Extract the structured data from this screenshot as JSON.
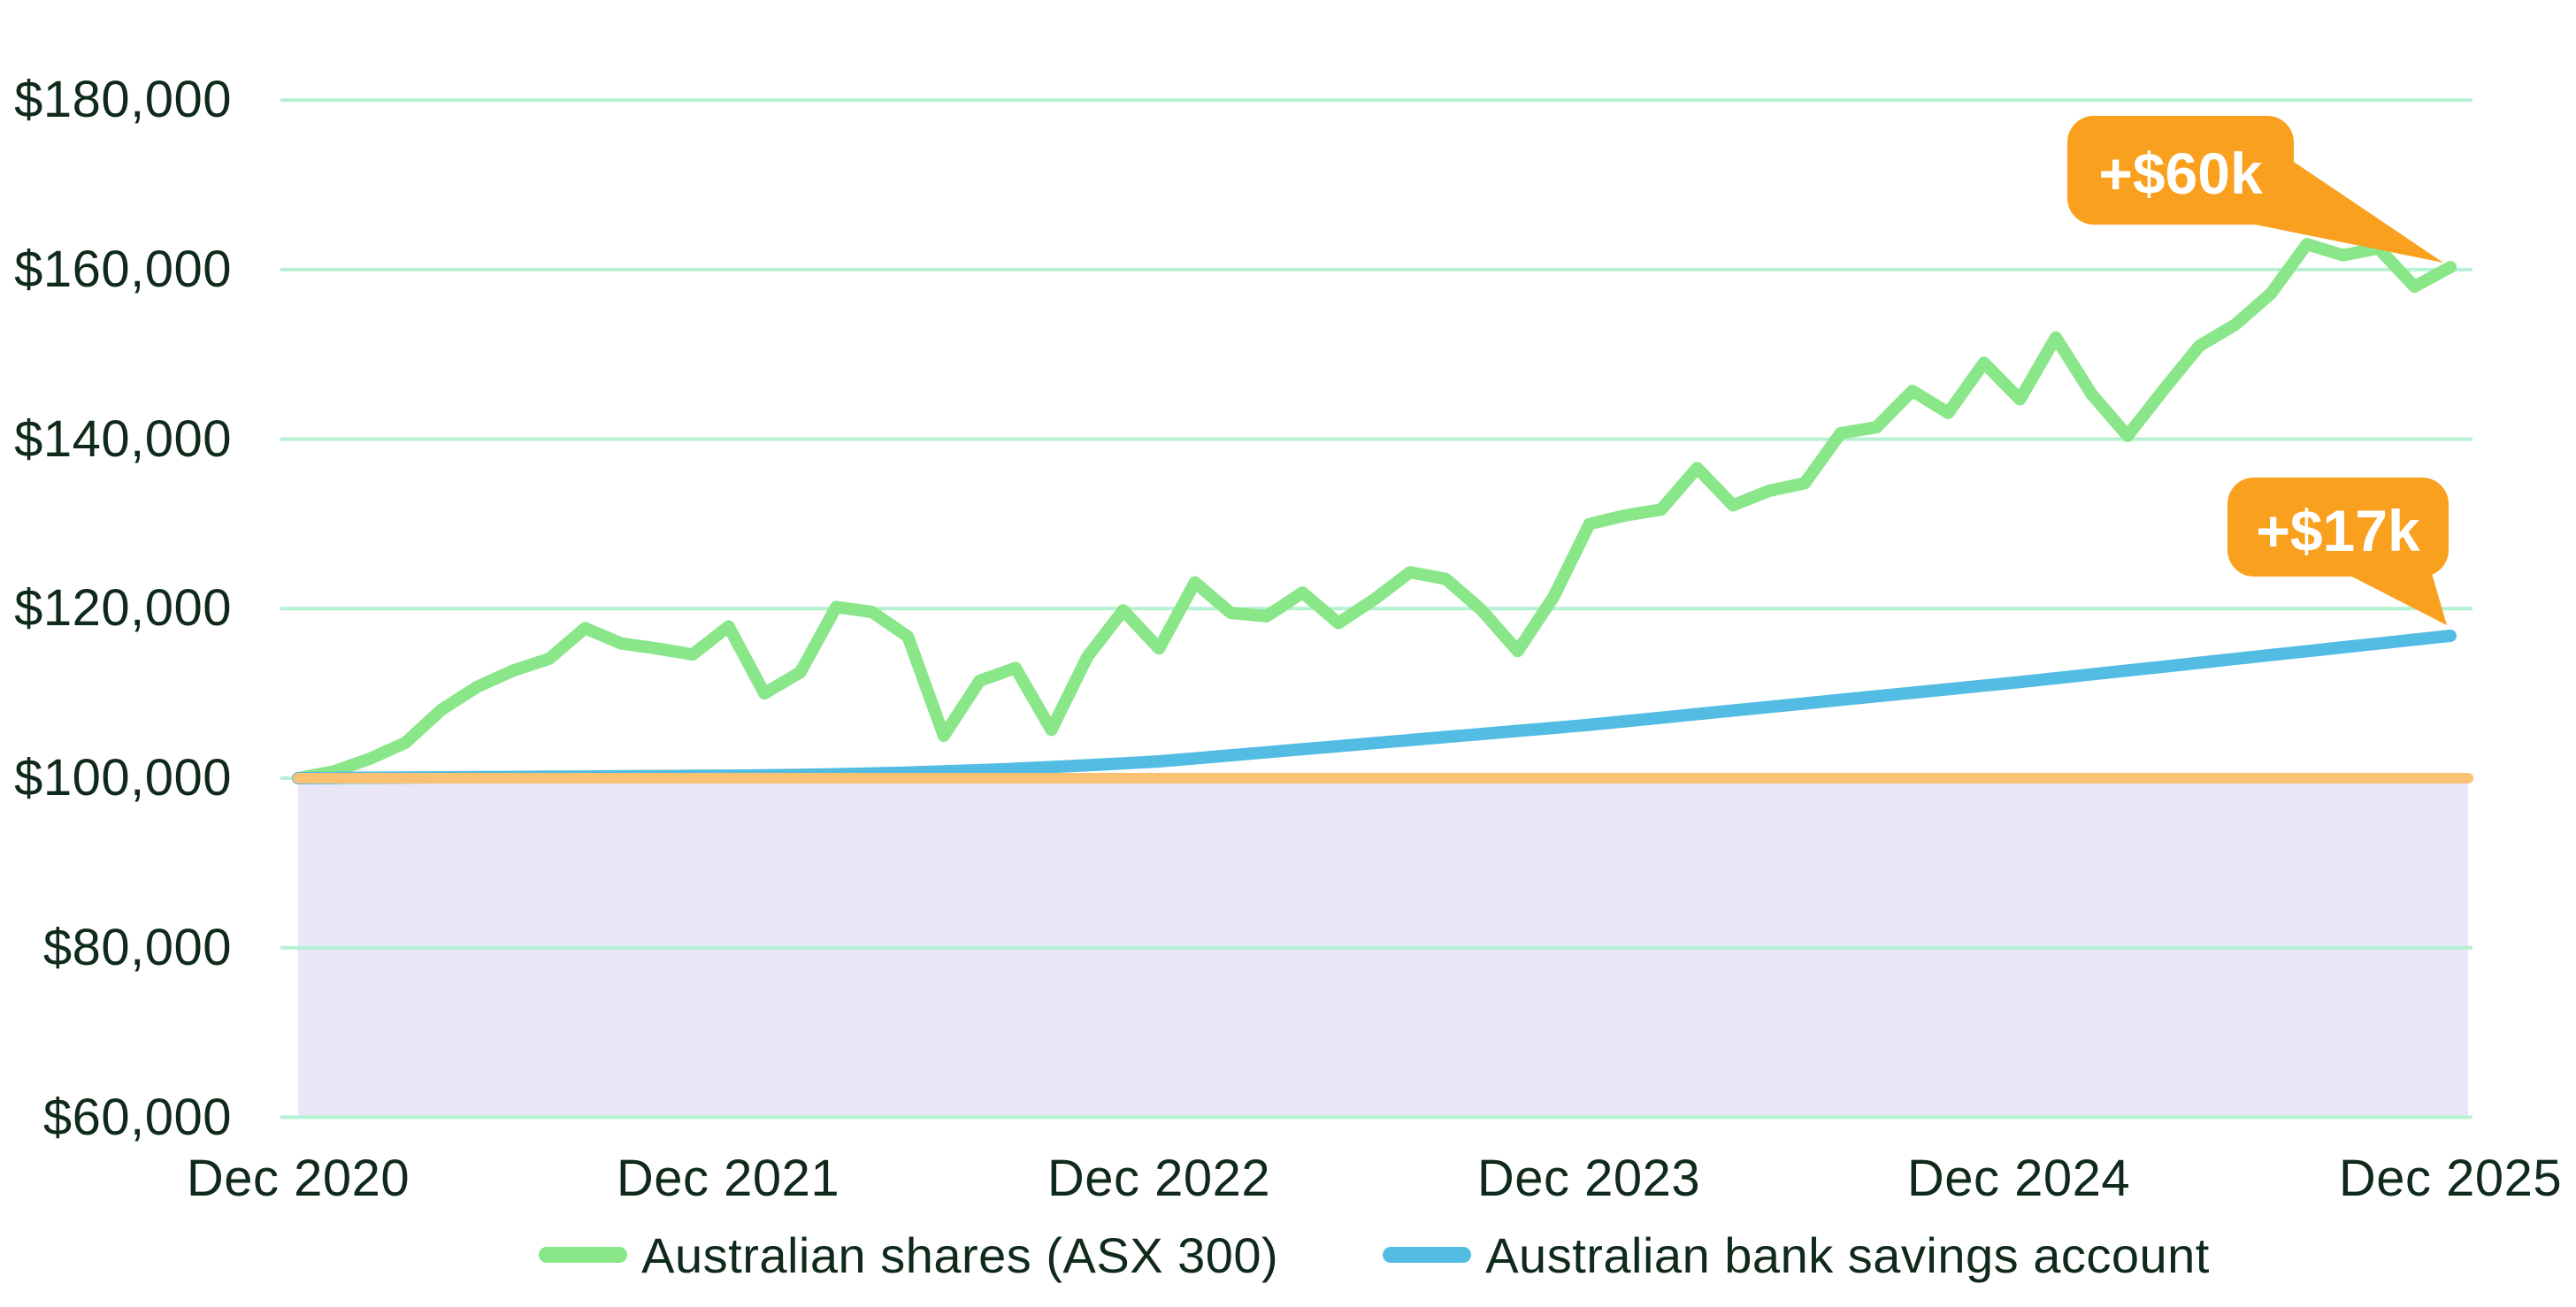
{
  "chart_data": {
    "type": "line",
    "title": "",
    "x_start": "Dec 2020",
    "x_end": "Dec 2025",
    "frequency": "monthly",
    "x_tick_labels": [
      "Dec 2020",
      "Dec 2021",
      "Dec 2022",
      "Dec 2023",
      "Dec 2024",
      "Dec 2025"
    ],
    "y_tick_labels": [
      "$180,000",
      "$160,000",
      "$140,000",
      "$120,000",
      "$100,000",
      "$80,000",
      "$60,000"
    ],
    "y_gridlines": [
      180000,
      160000,
      140000,
      120000,
      100000,
      80000,
      60000
    ],
    "ylim": [
      60000,
      180000
    ],
    "gridline_color": "#b6f1d3",
    "background_color": "#ffffff",
    "text_color": "#0f2a1b",
    "baseline": {
      "value": 100000,
      "color": "#fac173"
    },
    "shaded_region": {
      "from": 60000,
      "to": 100000,
      "color": "#e9e6f8"
    },
    "series": [
      {
        "name": "Australian shares (ASX 300)",
        "color": "#89e689",
        "values": [
          100000,
          100800,
          102300,
          104200,
          108100,
          110800,
          112700,
          114100,
          117700,
          115900,
          115300,
          114600,
          117900,
          110000,
          112500,
          120200,
          119600,
          116700,
          105000,
          111500,
          113000,
          105700,
          114300,
          119800,
          115300,
          123100,
          119500,
          119100,
          121900,
          118300,
          121100,
          124300,
          123500,
          119800,
          115000,
          121400,
          130000,
          131000,
          131700,
          136600,
          132200,
          133900,
          134800,
          140700,
          141400,
          145700,
          143100,
          149000,
          144700,
          152000,
          145300,
          140400,
          145800,
          151000,
          153500,
          157200,
          163000,
          161700,
          162500,
          158000,
          160300
        ]
      },
      {
        "name": "Australian bank savings account",
        "color": "#52bce3",
        "values": [
          100000,
          100030,
          100050,
          100080,
          100100,
          100130,
          100150,
          100180,
          100200,
          100230,
          100250,
          100280,
          100300,
          100340,
          100400,
          100470,
          100560,
          100670,
          100800,
          100950,
          101120,
          101310,
          101520,
          101740,
          101980,
          102340,
          102700,
          103060,
          103420,
          103780,
          104140,
          104500,
          104860,
          105220,
          105580,
          105940,
          106300,
          106720,
          107140,
          107560,
          107980,
          108400,
          108820,
          109240,
          109660,
          110080,
          110500,
          110920,
          111340,
          111800,
          112250,
          112710,
          113160,
          113620,
          114070,
          114530,
          114980,
          115440,
          115890,
          116350,
          116800
        ]
      }
    ],
    "annotations": [
      {
        "label": "+$60k",
        "series": "Australian shares (ASX 300)",
        "color": "#f9a11f",
        "text_color": "#ffffff"
      },
      {
        "label": "+$17k",
        "series": "Australian bank savings account",
        "color": "#f9a11f",
        "text_color": "#ffffff"
      }
    ],
    "legend_position": "bottom-center",
    "grid": "horizontal-only"
  }
}
